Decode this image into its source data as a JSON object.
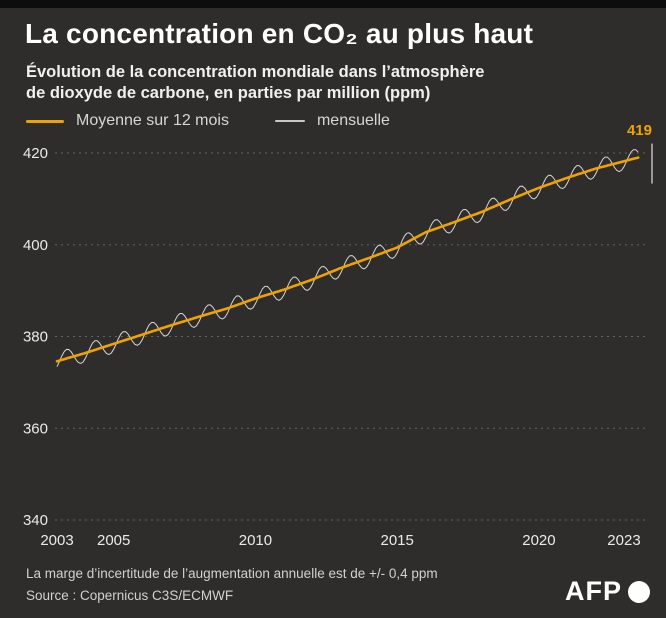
{
  "header": {
    "title": "La concentration en CO₂ au plus haut",
    "subtitle_line1": "Évolution de la concentration mondiale dans l’atmosphère",
    "subtitle_line2": "de dioxyde de carbone, en parties par million (ppm)"
  },
  "legend": {
    "avg_label": "Moyenne sur 12 mois",
    "monthly_label": "mensuelle"
  },
  "footer": {
    "note": "La marge d’incertitude de l’augmentation annuelle est de +/- 0,4 ppm",
    "source": "Source : Copernicus C3S/ECMWF",
    "logo_text": "AFP"
  },
  "colors": {
    "background": "#2e2d2b",
    "accent_orange": "#f0a202",
    "monthly_line": "#d6d5d2",
    "grid": "#64625e",
    "axis_text": "#eceae7",
    "muted_text": "#d2d1ce",
    "end_marker": "#bdbcb9"
  },
  "chart_data": {
    "type": "line",
    "title": "La concentration en CO₂ au plus haut",
    "xlabel": "",
    "ylabel": "ppm",
    "xlim": [
      2003,
      2023.6
    ],
    "ylim": [
      340,
      420
    ],
    "yticks": [
      340,
      360,
      380,
      400,
      420
    ],
    "xticks": [
      2003,
      2005,
      2010,
      2015,
      2020,
      2023
    ],
    "grid": "horizontal-dotted",
    "legend_position": "top-left",
    "annotation": {
      "x": 2023.5,
      "value": 419,
      "label": "419"
    },
    "series": [
      {
        "name": "Moyenne sur 12 mois",
        "style": "smooth-orange",
        "x": [
          2003,
          2004,
          2005,
          2006,
          2007,
          2008,
          2009,
          2010,
          2011,
          2012,
          2013,
          2014,
          2015,
          2016,
          2017,
          2018,
          2019,
          2020,
          2021,
          2022,
          2023,
          2023.5
        ],
        "values": [
          374.6,
          376.4,
          378.4,
          380.4,
          382.4,
          384.3,
          386.1,
          388.3,
          390.2,
          392.4,
          394.9,
          397.1,
          399.4,
          402.7,
          404.9,
          407.2,
          409.9,
          412.4,
          414.6,
          416.6,
          418.2,
          419.0
        ]
      },
      {
        "name": "mensuelle",
        "style": "thin-gray-seasonal",
        "derived_from": "Moyenne sur 12 mois",
        "seasonal_amplitude_ppm": 2.0,
        "seasonal_peak_fraction": 0.35,
        "sampling": "monthly"
      }
    ]
  }
}
